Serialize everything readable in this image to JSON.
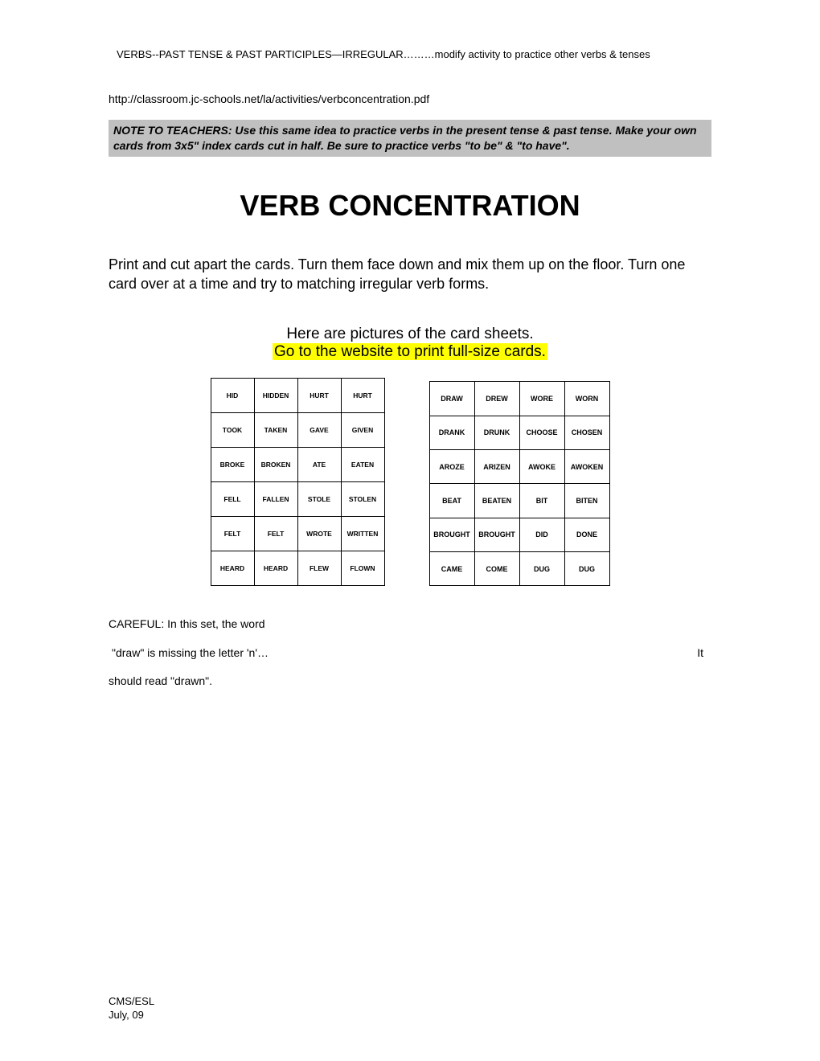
{
  "header": "VERBS--PAST TENSE & PAST PARTICIPLES—IRREGULAR………modify activity to practice other verbs & tenses",
  "url": "http://classroom.jc-schools.net/la/activities/verbconcentration.pdf",
  "note": "NOTE TO TEACHERS:  Use this same idea to practice verbs in the present tense & past tense.  Make your own cards from 3x5\" index cards cut in half.  Be sure to practice verbs \"to be\" & \"to have\".",
  "title": "VERB CONCENTRATION",
  "instructions": "Print and cut apart the cards. Turn them face down and mix them up on the floor. Turn one card over at a time and try to matching irregular verb forms.",
  "sub1": "Here are pictures of the card sheets.",
  "sub2": "Go to the website to print full-size cards.",
  "left_table": [
    [
      "HID",
      "HIDDEN",
      "HURT",
      "HURT"
    ],
    [
      "TOOK",
      "TAKEN",
      "GAVE",
      "GIVEN"
    ],
    [
      "BROKE",
      "BROKEN",
      "ATE",
      "EATEN"
    ],
    [
      "FELL",
      "FALLEN",
      "STOLE",
      "STOLEN"
    ],
    [
      "FELT",
      "FELT",
      "WROTE",
      "WRITTEN"
    ],
    [
      "HEARD",
      "HEARD",
      "FLEW",
      "FLOWN"
    ]
  ],
  "right_table": [
    [
      "DRAW",
      "DREW",
      "WORE",
      "WORN"
    ],
    [
      "DRANK",
      "DRUNK",
      "CHOOSE",
      "CHOSEN"
    ],
    [
      "AROZE",
      "ARIZEN",
      "AWOKE",
      "AWOKEN"
    ],
    [
      "BEAT",
      "BEATEN",
      "BIT",
      "BITEN"
    ],
    [
      "BROUGHT",
      "BROUGHT",
      "DID",
      "DONE"
    ],
    [
      "CAME",
      "COME",
      "DUG",
      "DUG"
    ]
  ],
  "careful1": "CAREFUL:  In this set, the word",
  "careful2": "\"draw\" is missing the letter 'n'…",
  "careful_it": "It",
  "careful3": "should read \"drawn\".",
  "footer1": "CMS/ESL",
  "footer2": "July, 09"
}
